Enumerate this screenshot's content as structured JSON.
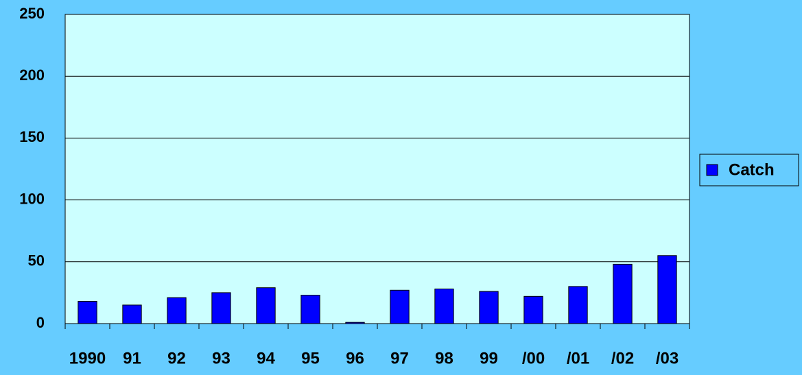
{
  "chart_data": {
    "type": "bar",
    "categories": [
      "1990",
      "91",
      "92",
      "93",
      "94",
      "95",
      "96",
      "97",
      "98",
      "99",
      "/00",
      "/01",
      "/02",
      "/03"
    ],
    "series": [
      {
        "name": "Catch",
        "color": "#0000ff",
        "values": [
          18,
          15,
          21,
          25,
          29,
          23,
          1,
          27,
          28,
          26,
          22,
          30,
          48,
          55
        ]
      }
    ],
    "ylim": [
      0,
      250
    ],
    "yticks": [
      0,
      50,
      100,
      150,
      200,
      250
    ],
    "grid": true,
    "legend": "right"
  }
}
